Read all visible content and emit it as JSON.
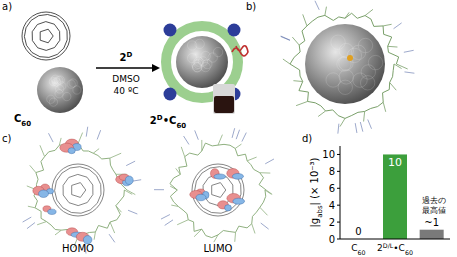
{
  "panels": {
    "a": {
      "label": "a)",
      "reactant": "C60",
      "reagent": "2D",
      "conditions": [
        "DMSO",
        "40 ºC"
      ],
      "product": "2D•C60"
    },
    "b": {
      "label": "b)"
    },
    "c": {
      "label": "c)",
      "orbitals": [
        "HOMO",
        "LUMO"
      ]
    },
    "d": {
      "label": "d)"
    }
  },
  "chart_data": {
    "type": "bar",
    "categories": [
      "C60",
      "2D/L•C60",
      null
    ],
    "values": [
      0,
      10,
      1.1
    ],
    "value_labels": [
      "0",
      "10",
      "~1"
    ],
    "colors": [
      "#8a8a8a",
      "#3c9f3c",
      "#7a7a7a"
    ],
    "ylabel": "|gabs| (× 10⁻³)",
    "ylim": [
      0,
      11
    ],
    "yticks": [
      0,
      2,
      4,
      6,
      8,
      10
    ],
    "data_labels": true,
    "annotation": [
      "過去の",
      "最高値"
    ]
  }
}
